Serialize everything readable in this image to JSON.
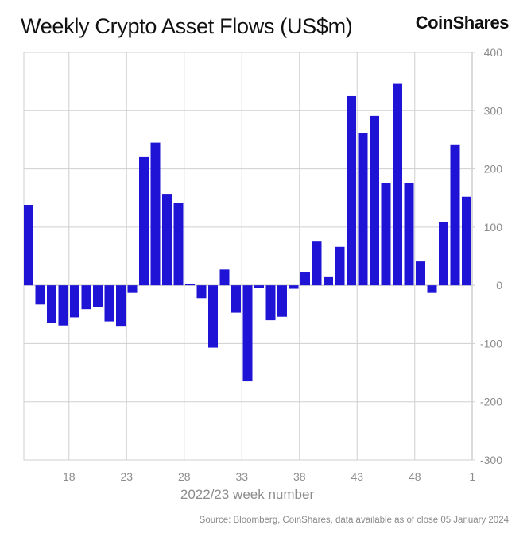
{
  "header": {
    "title": "Weekly Crypto Asset Flows (US$m)",
    "brand": "CoinShares"
  },
  "footer": {
    "source": "Source: Bloomberg, CoinShares, data available as of close 05 January 2024"
  },
  "colors": {
    "bar": "#1f14d6",
    "grid": "#cfcfcf",
    "zero_line": "#bdbdbd",
    "tick_text": "#8c8c8c"
  },
  "chart_data": {
    "type": "bar",
    "title": "Weekly Crypto Asset Flows (US$m)",
    "xlabel": "2022/23 week number",
    "ylabel": "",
    "ylim": [
      -300,
      400
    ],
    "yticks": [
      400,
      300,
      200,
      100,
      0,
      -100,
      -200,
      -300
    ],
    "grid": true,
    "y_axis_side": "right",
    "xtick_labels": [
      "18",
      "23",
      "28",
      "33",
      "38",
      "43",
      "48",
      "1"
    ],
    "categories": [
      "15",
      "16",
      "17",
      "18",
      "19",
      "20",
      "21",
      "22",
      "23",
      "24",
      "25",
      "26",
      "27",
      "28",
      "29",
      "30",
      "31",
      "32",
      "33",
      "34",
      "35",
      "36",
      "37",
      "38",
      "39",
      "40",
      "41",
      "42",
      "43",
      "44",
      "45",
      "46",
      "47",
      "48",
      "49",
      "50",
      "51",
      "52",
      "1"
    ],
    "values": [
      138,
      -33,
      -65,
      -69,
      -55,
      -41,
      -37,
      -62,
      -71,
      -13,
      220,
      245,
      157,
      142,
      2,
      -22,
      -107,
      27,
      -47,
      -165,
      -4,
      -60,
      -54,
      -6,
      22,
      75,
      14,
      66,
      325,
      261,
      291,
      176,
      346,
      176,
      41,
      -13,
      109,
      242,
      152
    ]
  }
}
